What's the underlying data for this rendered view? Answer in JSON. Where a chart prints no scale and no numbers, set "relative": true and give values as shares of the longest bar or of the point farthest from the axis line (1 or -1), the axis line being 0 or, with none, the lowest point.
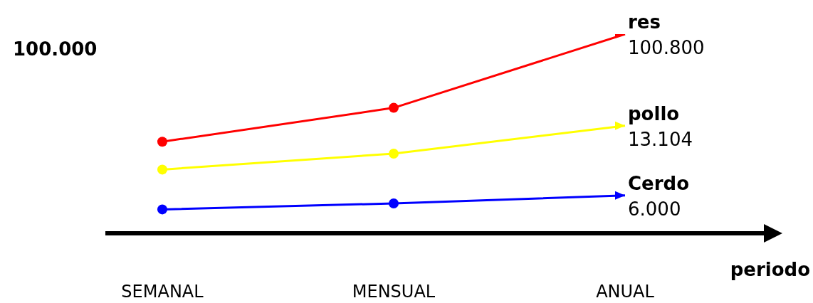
{
  "chart_data": {
    "type": "line",
    "relative": true,
    "xlabel": "periodo",
    "annotations": [
      "100.000",
      "100.800",
      "13.104",
      "6.000"
    ],
    "categories": [
      "SEMANAL",
      "MENSUAL",
      "ANUAL"
    ],
    "marker": "circle",
    "legend": false,
    "grid": false,
    "series": [
      {
        "name": "res",
        "color": "#ff0000",
        "values": [
          0.46,
          0.63,
          1
        ]
      },
      {
        "name": "pollo",
        "color": "#ffff00",
        "values": [
          0.32,
          0.4,
          0.54
        ]
      },
      {
        "name": "Cerdo",
        "color": "#0000ff",
        "values": [
          0.12,
          0.15,
          0.19
        ]
      }
    ]
  }
}
